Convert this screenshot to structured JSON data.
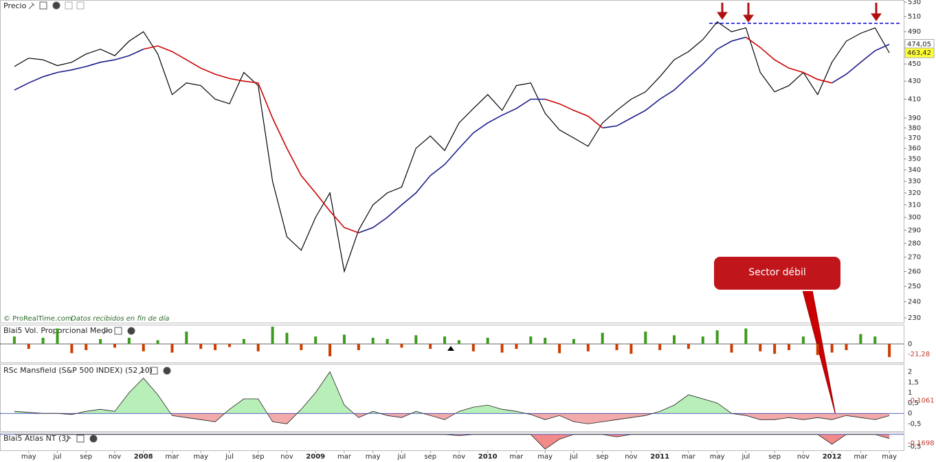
{
  "chart_data": [
    {
      "type": "candle-line",
      "title": "Precio",
      "log": true,
      "x": [
        "2007-04",
        "2007-05",
        "2007-06",
        "2007-07",
        "2007-08",
        "2007-09",
        "2007-10",
        "2007-11",
        "2007-12",
        "2008-01",
        "2008-02",
        "2008-03",
        "2008-04",
        "2008-05",
        "2008-06",
        "2008-07",
        "2008-08",
        "2008-09",
        "2008-10",
        "2008-11",
        "2008-12",
        "2009-01",
        "2009-02",
        "2009-03",
        "2009-04",
        "2009-05",
        "2009-06",
        "2009-07",
        "2009-08",
        "2009-09",
        "2009-10",
        "2009-11",
        "2009-12",
        "2010-01",
        "2010-02",
        "2010-03",
        "2010-04",
        "2010-05",
        "2010-06",
        "2010-07",
        "2010-08",
        "2010-09",
        "2010-10",
        "2010-11",
        "2010-12",
        "2011-01",
        "2011-02",
        "2011-03",
        "2011-04",
        "2011-05",
        "2011-06",
        "2011-07",
        "2011-08",
        "2011-09",
        "2011-10",
        "2011-11",
        "2011-12",
        "2012-01",
        "2012-02",
        "2012-03",
        "2012-04",
        "2012-05"
      ],
      "xlim": [
        "2007-03",
        "2012-06"
      ],
      "xticks": [
        {
          "value": "2007-05",
          "label": "may"
        },
        {
          "value": "2007-07",
          "label": "jul"
        },
        {
          "value": "2007-09",
          "label": "sep"
        },
        {
          "value": "2007-11",
          "label": "nov"
        },
        {
          "value": "2008-01",
          "label": "2008"
        },
        {
          "value": "2008-03",
          "label": "mar"
        },
        {
          "value": "2008-05",
          "label": "may"
        },
        {
          "value": "2008-07",
          "label": "jul"
        },
        {
          "value": "2008-09",
          "label": "sep"
        },
        {
          "value": "2008-11",
          "label": "nov"
        },
        {
          "value": "2009-01",
          "label": "2009"
        },
        {
          "value": "2009-03",
          "label": "mar"
        },
        {
          "value": "2009-05",
          "label": "may"
        },
        {
          "value": "2009-07",
          "label": "jul"
        },
        {
          "value": "2009-09",
          "label": "sep"
        },
        {
          "value": "2009-11",
          "label": "nov"
        },
        {
          "value": "2010-01",
          "label": "2010"
        },
        {
          "value": "2010-03",
          "label": "mar"
        },
        {
          "value": "2010-05",
          "label": "may"
        },
        {
          "value": "2010-07",
          "label": "jul"
        },
        {
          "value": "2010-09",
          "label": "sep"
        },
        {
          "value": "2010-11",
          "label": "nov"
        },
        {
          "value": "2011-01",
          "label": "2011"
        },
        {
          "value": "2011-03",
          "label": "mar"
        },
        {
          "value": "2011-05",
          "label": "may"
        },
        {
          "value": "2011-07",
          "label": "jul"
        },
        {
          "value": "2011-09",
          "label": "sep"
        },
        {
          "value": "2011-11",
          "label": "nov"
        },
        {
          "value": "2012-01",
          "label": "2012"
        },
        {
          "value": "2012-03",
          "label": "mar"
        },
        {
          "value": "2012-05",
          "label": "may"
        }
      ],
      "ylim": [
        230,
        530
      ],
      "yticks": [
        230,
        240,
        250,
        260,
        270,
        280,
        290,
        300,
        310,
        320,
        330,
        340,
        350,
        360,
        370,
        380,
        390,
        410,
        430,
        450,
        490,
        510,
        530
      ],
      "series": [
        {
          "color": "#000000",
          "values": [
            447,
            457,
            455,
            448,
            452,
            462,
            468,
            460,
            478,
            490,
            462,
            415,
            428,
            425,
            410,
            405,
            440,
            425,
            330,
            285,
            275,
            300,
            320,
            260,
            290,
            310,
            320,
            325,
            360,
            372,
            358,
            385,
            400,
            415,
            398,
            425,
            428,
            395,
            378,
            370,
            362,
            385,
            398,
            410,
            418,
            435,
            455,
            465,
            480,
            503,
            490,
            495,
            440,
            418,
            425,
            440,
            415,
            452,
            478,
            488,
            495,
            463.42
          ]
        },
        {
          "color": "#1a1a8c",
          "values": [
            420,
            428,
            435,
            440,
            443,
            447,
            452,
            455,
            460,
            468,
            null,
            null,
            null,
            null,
            null,
            null,
            null,
            null,
            null,
            null,
            null,
            null,
            null,
            null,
            288,
            292,
            300,
            310,
            320,
            335,
            345,
            360,
            375,
            385,
            393,
            400,
            410,
            410,
            null,
            null,
            null,
            380,
            382,
            390,
            398,
            410,
            420,
            435,
            450,
            468,
            478,
            483,
            null,
            null,
            null,
            null,
            null,
            428,
            438,
            452,
            466,
            474.05
          ]
        },
        {
          "color": "#cc0000",
          "values": [
            null,
            null,
            null,
            null,
            null,
            null,
            null,
            null,
            null,
            468,
            472,
            465,
            455,
            445,
            438,
            433,
            430,
            428,
            390,
            360,
            335,
            320,
            305,
            292,
            288,
            null,
            null,
            null,
            null,
            null,
            null,
            null,
            null,
            null,
            null,
            null,
            null,
            410,
            405,
            398,
            392,
            380,
            null,
            null,
            null,
            null,
            null,
            null,
            null,
            null,
            null,
            483,
            470,
            455,
            445,
            440,
            432,
            428,
            null,
            null,
            null,
            null
          ]
        }
      ],
      "markers": [
        {
          "value": 474.05,
          "label": "474,05",
          "color": "#ffffff"
        },
        {
          "value": 463.42,
          "label": "463,42",
          "color": "#ffff33"
        }
      ],
      "hline": {
        "value": 501,
        "color": "#0000cc"
      },
      "annotation": "Sector débil",
      "source": "© ProRealTime.com",
      "note": "Datos recibidos en fin de día"
    },
    {
      "type": "bar",
      "title": "Blai5 Vol. Proporcional Medio",
      "values": [
        12,
        -8,
        10,
        25,
        -15,
        -10,
        8,
        -6,
        10,
        -12,
        6,
        -14,
        20,
        -8,
        -10,
        -5,
        8,
        -12,
        28,
        18,
        -10,
        12,
        -20,
        15,
        -10,
        10,
        8,
        -6,
        14,
        -8,
        12,
        6,
        -12,
        10,
        -14,
        -8,
        12,
        10,
        -15,
        8,
        -12,
        18,
        -10,
        -16,
        20,
        -10,
        14,
        -8,
        12,
        22,
        -14,
        25,
        -12,
        -16,
        -10,
        12,
        -18,
        -14,
        -10,
        16,
        12,
        -21.28
      ],
      "ylim": [
        -30,
        30
      ],
      "yticks": [
        0
      ],
      "colors": [
        "#3c9a1e",
        "#cc3d00"
      ],
      "last_label": "-21,28"
    },
    {
      "type": "area",
      "title": "RSc Mansfield (S&P 500 INDEX) (52 10)",
      "values": [
        0.1,
        0.05,
        0,
        0,
        -0.05,
        0.1,
        0.2,
        0.1,
        1.0,
        1.7,
        0.9,
        -0.1,
        -0.2,
        -0.3,
        -0.4,
        0.2,
        0.7,
        0.7,
        -0.4,
        -0.5,
        0.2,
        1.0,
        2.0,
        0.4,
        -0.2,
        0.1,
        -0.1,
        -0.2,
        0.1,
        -0.1,
        -0.3,
        0.1,
        0.3,
        0.4,
        0.2,
        0.1,
        -0.05,
        -0.3,
        -0.1,
        -0.4,
        -0.5,
        -0.4,
        -0.3,
        -0.2,
        -0.1,
        0.1,
        0.4,
        0.9,
        0.7,
        0.5,
        0,
        -0.1,
        -0.3,
        -0.3,
        -0.2,
        -0.3,
        -0.2,
        -0.3,
        -0.1,
        -0.2,
        -0.3,
        -0.1061
      ],
      "ylim": [
        -0.85,
        2.35
      ],
      "yticks": [
        2,
        {
          "value": 1.5,
          "label": "1,5"
        },
        1,
        {
          "value": 0.5,
          "label": "0,5"
        },
        0,
        {
          "value": -0.5,
          "label": "-0,5"
        }
      ],
      "colors": [
        "#b8efb8",
        "#f2aaaa"
      ],
      "last_label": "-0,1061"
    },
    {
      "type": "area",
      "title": "Blai5 Atlas NT (3)",
      "values": [
        0,
        0,
        0,
        0,
        0,
        0,
        0,
        0,
        0,
        0,
        0,
        0,
        0,
        0,
        0,
        0,
        0,
        0,
        0,
        0,
        0,
        0,
        0,
        0,
        0,
        0,
        0,
        0,
        0,
        0,
        0,
        -0.05,
        0,
        0,
        0,
        0,
        0,
        -0.6,
        -0.2,
        0,
        0,
        0,
        -0.1,
        0,
        0,
        0,
        0,
        0,
        0,
        0,
        0,
        0,
        0,
        0,
        0,
        0,
        0,
        -0.4,
        0,
        0,
        0,
        -0.1698
      ],
      "ylim": [
        -0.65,
        0.05
      ],
      "yticks": [
        {
          "value": -0.5,
          "label": "-0,5"
        }
      ],
      "colors": [
        "#b8efb8",
        "#f28a8a"
      ],
      "last_label": "-0,1698"
    }
  ]
}
